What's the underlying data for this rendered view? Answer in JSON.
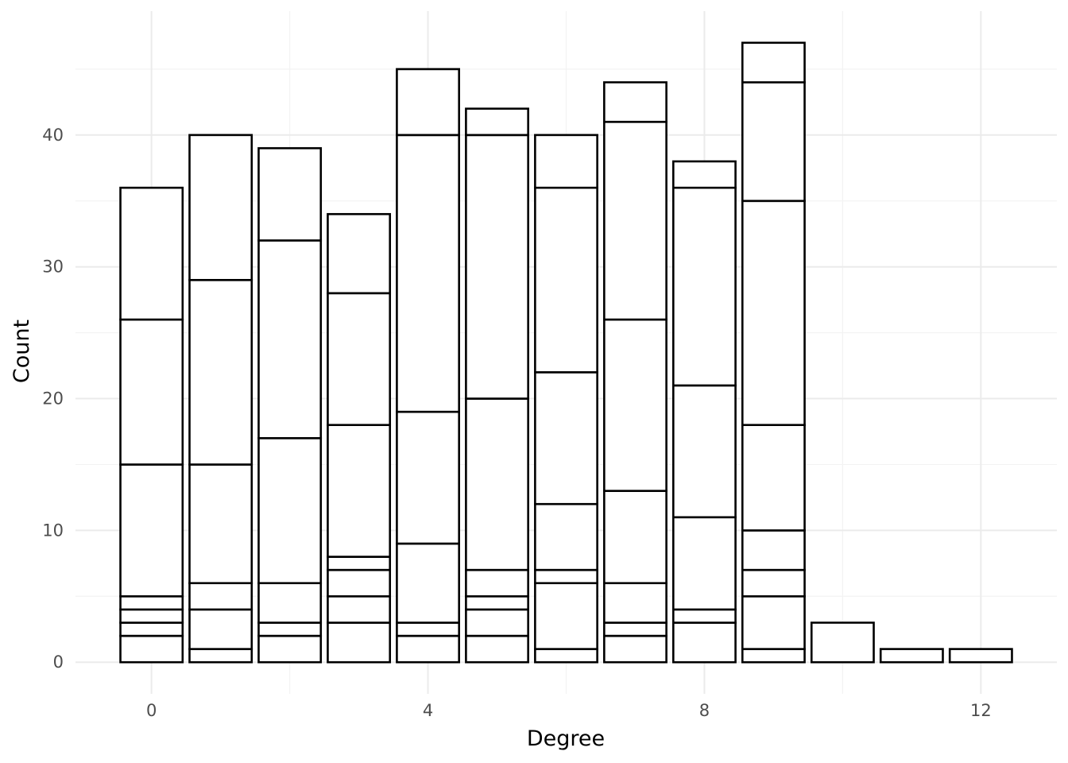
{
  "chart_data": {
    "type": "bar",
    "stacked": true,
    "xlabel": "Degree",
    "ylabel": "Count",
    "xlim": [
      -1.1,
      13.1
    ],
    "ylim": [
      -2.4,
      49.4
    ],
    "x_ticks": [
      0,
      4,
      8,
      12
    ],
    "x_tick_labels": [
      "0",
      "4",
      "8",
      "12"
    ],
    "y_ticks": [
      0,
      10,
      20,
      30,
      40
    ],
    "y_tick_labels": [
      "0",
      "10",
      "20",
      "30",
      "40"
    ],
    "grid": true,
    "fill_color": "#ffffff",
    "outline_color": "#000000",
    "bars": [
      {
        "x": 0,
        "total": 36,
        "boundaries": [
          2,
          3,
          4,
          5,
          15,
          26
        ]
      },
      {
        "x": 1,
        "total": 40,
        "boundaries": [
          1,
          4,
          6,
          15,
          29
        ]
      },
      {
        "x": 2,
        "total": 39,
        "boundaries": [
          2,
          3,
          6,
          17,
          32
        ]
      },
      {
        "x": 3,
        "total": 34,
        "boundaries": [
          3,
          5,
          7,
          8,
          18,
          28
        ]
      },
      {
        "x": 4,
        "total": 45,
        "boundaries": [
          2,
          3,
          9,
          19,
          40
        ]
      },
      {
        "x": 5,
        "total": 42,
        "boundaries": [
          2,
          4,
          5,
          7,
          20,
          40
        ]
      },
      {
        "x": 6,
        "total": 40,
        "boundaries": [
          1,
          6,
          7,
          12,
          22,
          36
        ]
      },
      {
        "x": 7,
        "total": 44,
        "boundaries": [
          2,
          3,
          6,
          13,
          26,
          41
        ]
      },
      {
        "x": 8,
        "total": 38,
        "boundaries": [
          3,
          4,
          11,
          21,
          36
        ]
      },
      {
        "x": 9,
        "total": 47,
        "boundaries": [
          1,
          5,
          7,
          10,
          18,
          35,
          44
        ]
      },
      {
        "x": 10,
        "total": 3,
        "boundaries": []
      },
      {
        "x": 11,
        "total": 1,
        "boundaries": []
      },
      {
        "x": 12,
        "total": 1,
        "boundaries": []
      }
    ]
  }
}
